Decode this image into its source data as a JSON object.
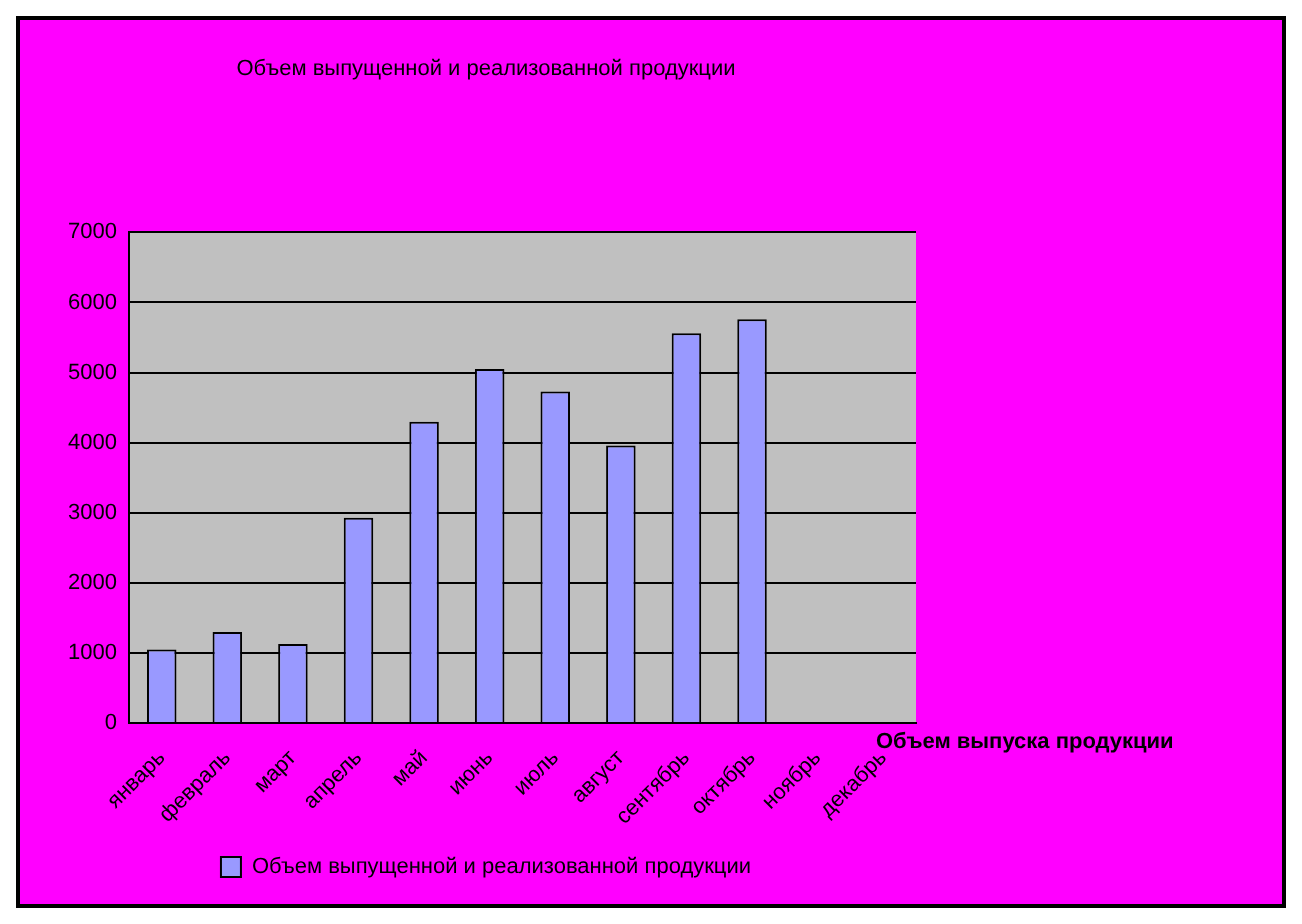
{
  "chart_data": {
    "type": "bar",
    "title": "Объем выпущенной и реализованной продукции",
    "xlabel": "Объем выпуска продукции",
    "categories": [
      "январь",
      "февраль",
      "март",
      "апрель",
      "май",
      "июнь",
      "июль",
      "август",
      "сентябрь",
      "октябрь",
      "ноябрь",
      "декабрь"
    ],
    "series": [
      {
        "name": "Объем выпущенной и реализованной продукции",
        "color": "#9999ff",
        "values": [
          1050,
          1300,
          1130,
          2930,
          4300,
          5050,
          4730,
          3960,
          5560,
          5760,
          null,
          null
        ]
      }
    ],
    "ylim": [
      0,
      7000
    ],
    "yticks": [
      0,
      1000,
      2000,
      3000,
      4000,
      5000,
      6000,
      7000
    ],
    "grid": "y",
    "legend": "bottom"
  }
}
